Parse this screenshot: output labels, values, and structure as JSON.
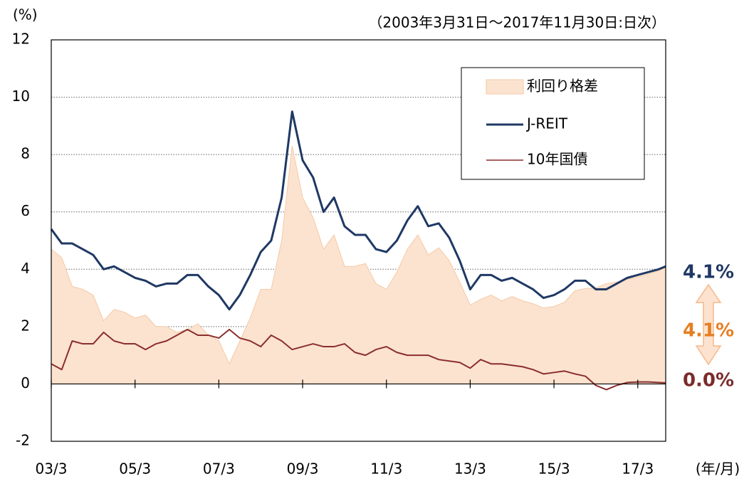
{
  "chart_data": {
    "type": "line",
    "subtitle": "（2003年3月31日～2017年11月30日:日次）",
    "y_axis_label": "(%)",
    "x_axis_label": "(年/月)",
    "x": [
      "2003-03",
      "2003-06",
      "2003-09",
      "2003-12",
      "2004-03",
      "2004-06",
      "2004-09",
      "2004-12",
      "2005-03",
      "2005-06",
      "2005-09",
      "2005-12",
      "2006-03",
      "2006-06",
      "2006-09",
      "2006-12",
      "2007-03",
      "2007-06",
      "2007-09",
      "2007-12",
      "2008-03",
      "2008-06",
      "2008-09",
      "2008-12",
      "2009-03",
      "2009-06",
      "2009-09",
      "2009-12",
      "2010-03",
      "2010-06",
      "2010-09",
      "2010-12",
      "2011-03",
      "2011-06",
      "2011-09",
      "2011-12",
      "2012-03",
      "2012-06",
      "2012-09",
      "2012-12",
      "2013-03",
      "2013-06",
      "2013-09",
      "2013-12",
      "2014-03",
      "2014-06",
      "2014-09",
      "2014-12",
      "2015-03",
      "2015-06",
      "2015-09",
      "2015-12",
      "2016-03",
      "2016-06",
      "2016-09",
      "2016-12",
      "2017-03",
      "2017-06",
      "2017-09",
      "2017-11"
    ],
    "series": [
      {
        "name": "利回り格差",
        "type": "area",
        "color": "#fbe3d0",
        "values": [
          4.7,
          4.4,
          3.4,
          3.3,
          3.1,
          2.2,
          2.6,
          2.5,
          2.3,
          2.4,
          2.0,
          2.0,
          1.8,
          1.9,
          2.1,
          1.7,
          1.5,
          0.7,
          1.5,
          2.3,
          3.3,
          3.3,
          5.0,
          8.3,
          6.5,
          5.8,
          4.7,
          5.2,
          4.1,
          4.1,
          4.2,
          3.5,
          3.3,
          3.9,
          4.7,
          5.2,
          4.5,
          4.75,
          4.3,
          3.55,
          2.75,
          2.95,
          3.1,
          2.9,
          3.05,
          2.9,
          2.8,
          2.65,
          2.7,
          2.85,
          3.25,
          3.33,
          3.35,
          3.5,
          3.55,
          3.65,
          3.73,
          3.83,
          3.95,
          4.06
        ]
      },
      {
        "name": "J-REIT",
        "type": "line",
        "color": "#1f3864",
        "values": [
          5.4,
          4.9,
          4.9,
          4.7,
          4.5,
          4.0,
          4.1,
          3.9,
          3.7,
          3.6,
          3.4,
          3.5,
          3.5,
          3.8,
          3.8,
          3.4,
          3.1,
          2.6,
          3.1,
          3.8,
          4.6,
          5.0,
          6.5,
          9.5,
          7.8,
          7.2,
          6.0,
          6.5,
          5.5,
          5.2,
          5.2,
          4.7,
          4.6,
          5.0,
          5.7,
          6.2,
          5.5,
          5.6,
          5.1,
          4.3,
          3.3,
          3.8,
          3.8,
          3.6,
          3.7,
          3.5,
          3.3,
          3.0,
          3.1,
          3.3,
          3.6,
          3.6,
          3.3,
          3.3,
          3.5,
          3.7,
          3.8,
          3.9,
          4.0,
          4.1
        ]
      },
      {
        "name": "10年国債",
        "type": "line",
        "color": "#8b2d2d",
        "values": [
          0.7,
          0.5,
          1.5,
          1.4,
          1.4,
          1.8,
          1.5,
          1.4,
          1.4,
          1.2,
          1.4,
          1.5,
          1.7,
          1.9,
          1.7,
          1.7,
          1.6,
          1.9,
          1.6,
          1.5,
          1.3,
          1.7,
          1.5,
          1.2,
          1.3,
          1.4,
          1.3,
          1.3,
          1.4,
          1.1,
          1.0,
          1.2,
          1.3,
          1.1,
          1.0,
          1.0,
          1.0,
          0.85,
          0.8,
          0.75,
          0.55,
          0.85,
          0.7,
          0.7,
          0.65,
          0.6,
          0.5,
          0.35,
          0.4,
          0.45,
          0.35,
          0.27,
          -0.05,
          -0.2,
          -0.05,
          0.05,
          0.07,
          0.07,
          0.05,
          0.04
        ]
      }
    ],
    "ylim": [
      -2,
      12
    ],
    "yticks": [
      -2,
      0,
      2,
      4,
      6,
      8,
      10,
      12
    ],
    "xlim": [
      "2003-03",
      "2017-11"
    ],
    "xticks": [
      {
        "value": "2003-03",
        "label": "03/3"
      },
      {
        "value": "2005-03",
        "label": "05/3"
      },
      {
        "value": "2007-03",
        "label": "07/3"
      },
      {
        "value": "2009-03",
        "label": "09/3"
      },
      {
        "value": "2011-03",
        "label": "11/3"
      },
      {
        "value": "2013-03",
        "label": "13/3"
      },
      {
        "value": "2015-03",
        "label": "15/3"
      },
      {
        "value": "2017-03",
        "label": "17/3"
      }
    ],
    "grid": true,
    "legend": "upper right",
    "annotations": [
      {
        "text": "4.1%",
        "color": "#1f3864"
      },
      {
        "text": "4.1%",
        "color": "#e67e22"
      },
      {
        "text": "0.0%",
        "color": "#7b2b2b"
      }
    ]
  }
}
